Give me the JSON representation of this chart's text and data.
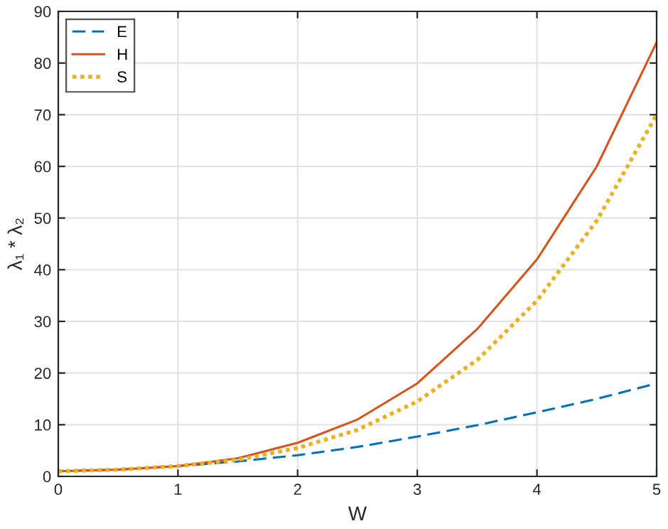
{
  "chart_data": {
    "type": "line",
    "xlabel": "W",
    "ylabel": "λ₁ * λ₂",
    "x": [
      0,
      0.5,
      1,
      1.5,
      2,
      2.5,
      3,
      3.5,
      4,
      4.5,
      5
    ],
    "series": [
      {
        "name": "E",
        "color": "#0072bd",
        "line_style": "dashed",
        "values": [
          1,
          1.3,
          2,
          2.9,
          4.1,
          5.7,
          7.7,
          9.9,
          12.4,
          15,
          18
        ]
      },
      {
        "name": "H",
        "color": "#d95319",
        "line_style": "solid",
        "values": [
          1,
          1.3,
          2,
          3.5,
          6.5,
          11,
          18,
          28.5,
          42,
          60,
          84
        ]
      },
      {
        "name": "S",
        "color": "#edb120",
        "line_style": "dotted",
        "values": [
          1,
          1.3,
          2,
          3.2,
          5.5,
          9,
          14.5,
          22.5,
          34,
          49.5,
          70
        ]
      }
    ],
    "xlim": [
      0,
      5
    ],
    "xticks": [
      0,
      1,
      2,
      3,
      4,
      5
    ],
    "ylim": [
      0,
      90
    ],
    "yticks": [
      0,
      10,
      20,
      30,
      40,
      50,
      60,
      70,
      80,
      90
    ],
    "grid": true,
    "legend": "top left",
    "marker": "none"
  }
}
